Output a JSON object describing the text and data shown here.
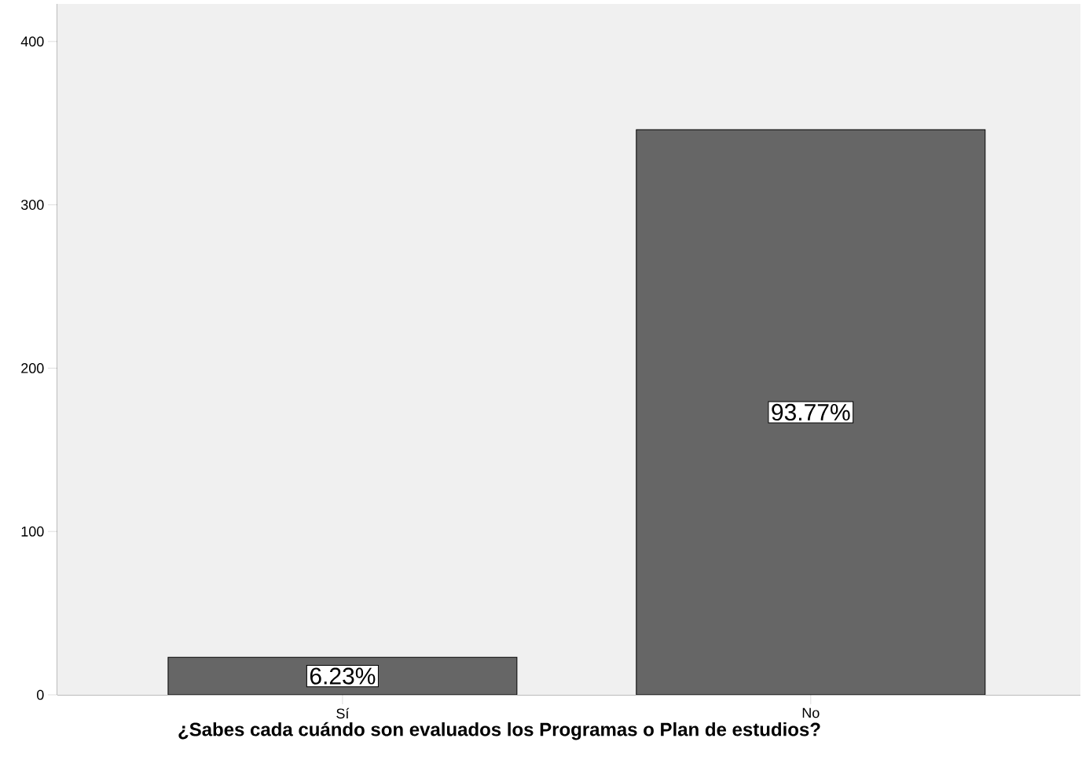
{
  "chart_data": {
    "type": "bar",
    "xlabel": "¿Sabes cada cuándo son evaluados los Programas o Plan de estudios?",
    "categories": [
      "Sí",
      "No"
    ],
    "values": [
      23,
      346
    ],
    "annotations": [
      "6.23%",
      "93.77%"
    ],
    "color": "#666666",
    "ylim": [
      0,
      423
    ],
    "yticks": [
      0,
      100,
      200,
      300,
      400
    ],
    "grid": false
  }
}
